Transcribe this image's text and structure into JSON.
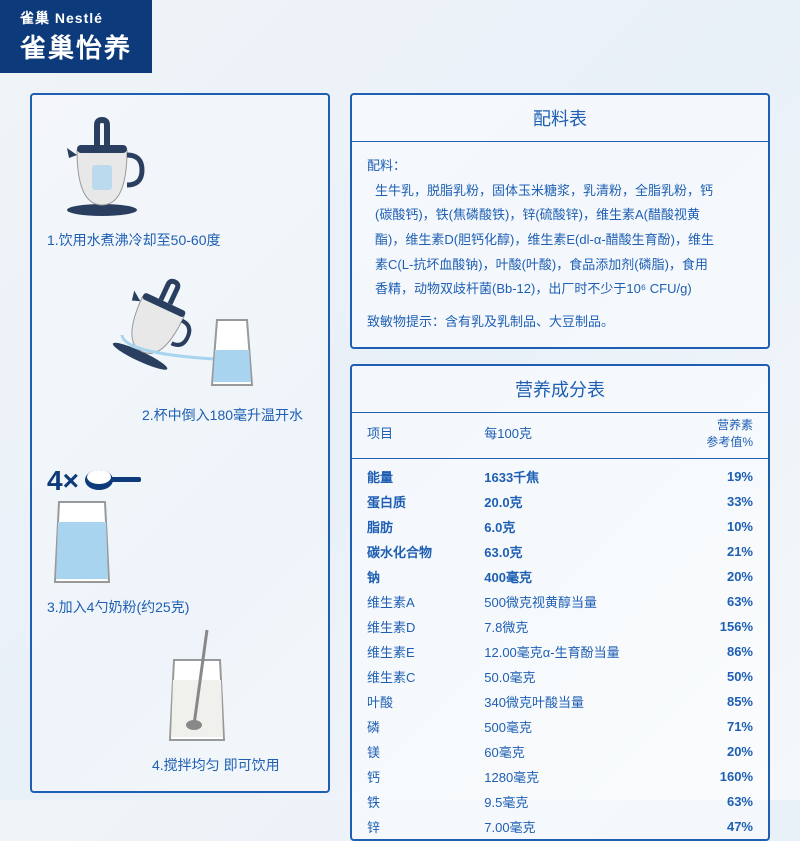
{
  "brand": {
    "small": "雀巢 Nestlé",
    "large": "雀巢怡养"
  },
  "colors": {
    "primary": "#1e5fb3",
    "banner": "#0d3a7a",
    "kettle_handle": "#2a3f5f",
    "kettle_body": "#e8e8e8",
    "water": "#a8d4f0"
  },
  "steps": {
    "s1": "1.饮用水煮沸冷却至50-60度",
    "s2": "2.杯中倒入180毫升温开水",
    "s3_scoop": "4×",
    "s3": "3.加入4勺奶粉(约25克)",
    "s4": "4.搅拌均匀 即可饮用"
  },
  "ingredients": {
    "title": "配料表",
    "label": "配料：",
    "text": "生牛乳，脱脂乳粉，固体玉米糖浆，乳清粉，全脂乳粉，钙(碳酸钙)，铁(焦磷酸铁)，锌(硫酸锌)，维生素A(醋酸视黄酯)，维生素D(胆钙化醇)，维生素E(dl-α-醋酸生育酚)，维生素C(L-抗坏血酸钠)，叶酸(叶酸)，食品添加剂(磷脂)，食用香精，动物双歧杆菌(Bb-12)，出厂时不少于10⁶ CFU/g)",
    "allergen": "致敏物提示：含有乳及乳制品、大豆制品。"
  },
  "nutrition": {
    "title": "营养成分表",
    "headers": {
      "item": "项目",
      "per100g": "每100克",
      "nrv": "营养素\n参考值%"
    },
    "rows": [
      {
        "name": "能量",
        "value": "1633千焦",
        "nrv": "19%",
        "bold": true
      },
      {
        "name": "蛋白质",
        "value": "20.0克",
        "nrv": "33%",
        "bold": true
      },
      {
        "name": "脂肪",
        "value": "6.0克",
        "nrv": "10%",
        "bold": true
      },
      {
        "name": "碳水化合物",
        "value": "63.0克",
        "nrv": "21%",
        "bold": true
      },
      {
        "name": "钠",
        "value": "400毫克",
        "nrv": "20%",
        "bold": true
      },
      {
        "name": "维生素A",
        "value": "500微克视黄醇当量",
        "nrv": "63%",
        "bold": false
      },
      {
        "name": "维生素D",
        "value": "7.8微克",
        "nrv": "156%",
        "bold": false
      },
      {
        "name": "维生素E",
        "value": "12.00毫克α-生育酚当量",
        "nrv": "86%",
        "bold": false
      },
      {
        "name": "维生素C",
        "value": "50.0毫克",
        "nrv": "50%",
        "bold": false
      },
      {
        "name": "叶酸",
        "value": "340微克叶酸当量",
        "nrv": "85%",
        "bold": false
      },
      {
        "name": "磷",
        "value": "500毫克",
        "nrv": "71%",
        "bold": false
      },
      {
        "name": "镁",
        "value": "60毫克",
        "nrv": "20%",
        "bold": false
      },
      {
        "name": "钙",
        "value": "1280毫克",
        "nrv": "160%",
        "bold": false
      },
      {
        "name": "铁",
        "value": "9.5毫克",
        "nrv": "63%",
        "bold": false
      },
      {
        "name": "锌",
        "value": "7.00毫克",
        "nrv": "47%",
        "bold": false
      }
    ]
  }
}
